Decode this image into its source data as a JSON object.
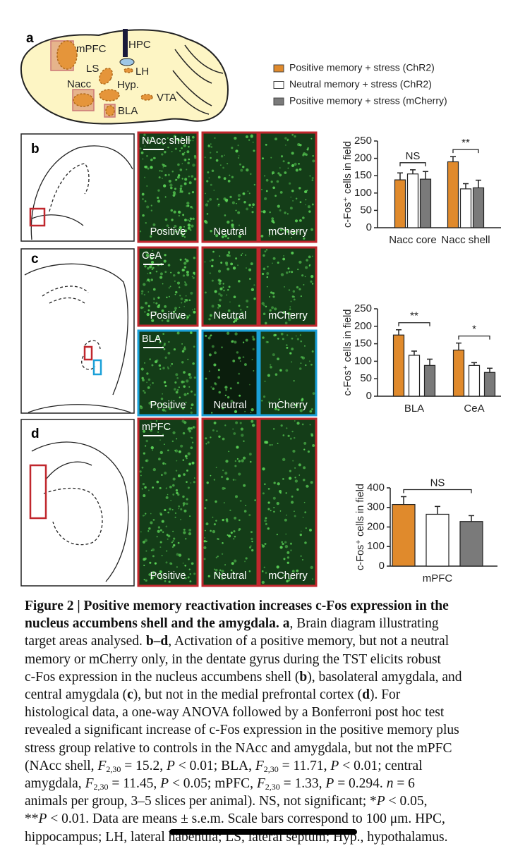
{
  "panels": {
    "a": {
      "label": "a",
      "regions": [
        "mPFC",
        "HPC",
        "LS",
        "LH",
        "Nacc",
        "Hyp.",
        "VTA",
        "BLA"
      ]
    },
    "b": {
      "label": "b",
      "images": [
        {
          "region": "NAcc shell",
          "groups": [
            "Positive",
            "Neutral",
            "mCherry"
          ]
        }
      ]
    },
    "c": {
      "label": "c",
      "images": [
        {
          "region": "CeA",
          "groups": [
            "Positive",
            "Neutral",
            "mCherry"
          ]
        },
        {
          "region": "BLA",
          "groups": [
            "Positive",
            "Neutral",
            "mCherry"
          ]
        }
      ]
    },
    "d": {
      "label": "d",
      "images": [
        {
          "region": "mPFC",
          "groups": [
            "Positive",
            "Neutral",
            "mCherry"
          ]
        }
      ]
    }
  },
  "chart_data": [
    {
      "type": "bar",
      "ylabel": "c-Fos⁺ cells in field",
      "categories": [
        "Nacc core",
        "Nacc shell"
      ],
      "series": [
        {
          "name": "Positive memory + stress (ChR2)",
          "color": "#e08a2c",
          "values": [
            138,
            190
          ],
          "errors": [
            20,
            15
          ]
        },
        {
          "name": "Neutral memory + stress (ChR2)",
          "color": "#ffffff",
          "values": [
            155,
            112
          ],
          "errors": [
            12,
            15
          ]
        },
        {
          "name": "Positive memory + stress (mCherry)",
          "color": "#7a7a7a",
          "values": [
            140,
            115
          ],
          "errors": [
            22,
            22
          ]
        }
      ],
      "ylim": [
        0,
        250
      ],
      "yticks": [
        0,
        50,
        100,
        150,
        200,
        250
      ],
      "annotations": [
        "NS",
        "**"
      ]
    },
    {
      "type": "bar",
      "ylabel": "c-Fos⁺ cells in field",
      "categories": [
        "BLA",
        "CeA"
      ],
      "series": [
        {
          "color": "#e08a2c",
          "values": [
            175,
            132
          ],
          "errors": [
            15,
            20
          ]
        },
        {
          "color": "#ffffff",
          "values": [
            117,
            88
          ],
          "errors": [
            12,
            8
          ]
        },
        {
          "color": "#7a7a7a",
          "values": [
            88,
            68
          ],
          "errors": [
            18,
            12
          ]
        }
      ],
      "ylim": [
        0,
        250
      ],
      "yticks": [
        0,
        50,
        100,
        150,
        200,
        250
      ],
      "annotations": [
        "**",
        "*"
      ]
    },
    {
      "type": "bar",
      "ylabel": "c-Fos⁺ cells in field",
      "categories": [
        "mPFC"
      ],
      "series": [
        {
          "color": "#e08a2c",
          "values": [
            315
          ],
          "errors": [
            40
          ]
        },
        {
          "color": "#ffffff",
          "values": [
            265
          ],
          "errors": [
            40
          ]
        },
        {
          "color": "#7a7a7a",
          "values": [
            228
          ],
          "errors": [
            30
          ]
        }
      ],
      "ylim": [
        0,
        400
      ],
      "yticks": [
        0,
        100,
        200,
        300,
        400
      ],
      "annotations": [
        "NS"
      ]
    }
  ],
  "caption": [
    [
      {
        "text": "Figure 2 | Positive memory reactivation increases c-Fos expression in the",
        "format": "bold"
      }
    ],
    [
      {
        "text": "nucleus accumbens shell and the amygdala.",
        "format": "bold"
      },
      " ",
      {
        "text": "a",
        "format": "bold"
      },
      ", Brain diagram illustrating"
    ],
    [
      "target areas analysed. ",
      {
        "text": "b–d",
        "format": "bold"
      },
      ", Activation of a positive memory, but not a neutral"
    ],
    [
      "memory or mCherry only, in the dentate gyrus during the TST elicits robust"
    ],
    [
      "c-Fos expression in the nucleus accumbens shell (",
      {
        "text": "b",
        "format": "bold"
      },
      "), basolateral amygdala, and"
    ],
    [
      "central amygdala (",
      {
        "text": "c",
        "format": "bold"
      },
      "), but not in the medial prefrontal cortex (",
      {
        "text": "d",
        "format": "bold"
      },
      "). For"
    ],
    [
      "histological data, a one-way ANOVA followed by a Bonferroni post hoc test"
    ],
    [
      "revealed a significant increase of c-Fos expression in the positive memory plus"
    ],
    [
      "stress group relative to controls in the NAcc and amygdala, but not the mPFC"
    ],
    [
      "(NAcc shell, ",
      {
        "text": "F",
        "format": "italic"
      },
      {
        "text": "2,30",
        "format": "sub"
      },
      " = 15.2, ",
      {
        "text": "P",
        "format": "italic"
      },
      " < 0.01; BLA, ",
      {
        "text": "F",
        "format": "italic"
      },
      {
        "text": "2,30",
        "format": "sub"
      },
      " = 11.71, ",
      {
        "text": "P",
        "format": "italic"
      },
      " < 0.01; central"
    ],
    [
      "amygdala, ",
      {
        "text": "F",
        "format": "italic"
      },
      {
        "text": "2,30",
        "format": "sub"
      },
      " = 11.45, ",
      {
        "text": "P",
        "format": "italic"
      },
      " < 0.05; mPFC, ",
      {
        "text": "F",
        "format": "italic"
      },
      {
        "text": "2,30",
        "format": "sub"
      },
      " = 1.33, ",
      {
        "text": "P",
        "format": "italic"
      },
      " = 0.294. ",
      {
        "text": "n",
        "format": "italic"
      },
      " = 6"
    ],
    [
      "animals per group, 3–5 slices per animal). NS, not significant; *",
      {
        "text": "P",
        "format": "italic"
      },
      " < 0.05,"
    ],
    [
      "**",
      {
        "text": "P",
        "format": "italic"
      },
      " < 0.01. Data are means ± s.e.m. Scale bars correspond to 100 μm. HPC,"
    ],
    [
      "hippocampus; LH, lateral habenula; LS, lateral septum; Hyp., hypothalamus."
    ]
  ]
}
